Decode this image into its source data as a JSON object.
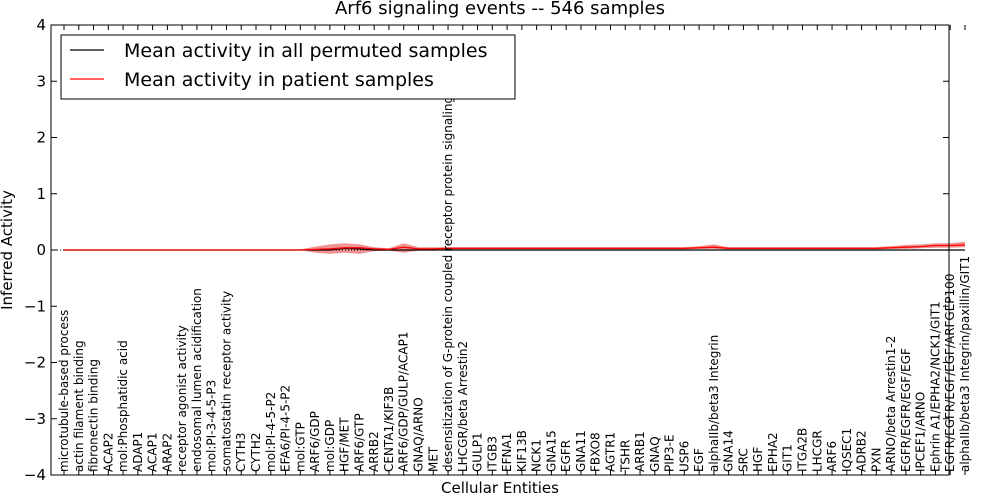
{
  "chart_data": {
    "type": "line",
    "title": "Arf6 signaling events -- 546 samples",
    "xlabel": "Cellular Entities",
    "ylabel": "Inferred Activity",
    "ylim": [
      -4,
      4
    ],
    "yticks": [
      "−4",
      "−3",
      "−2",
      "−1",
      "0",
      "1",
      "2",
      "3",
      "4"
    ],
    "yticks_values": [
      -4,
      -3,
      -2,
      -1,
      0,
      1,
      2,
      3,
      4
    ],
    "grid": false,
    "legend_position": "top-left",
    "categories": [
      "microtubule-based process",
      "actin filament binding",
      "fibronectin binding",
      "ACAP2",
      "mol:Phosphatidic acid",
      "ADAP1",
      "ACAP1",
      "ARAP2",
      "receptor agonist activity",
      "endosomal lumen acidification",
      "mol:PI-3-4-5-P3",
      "somatostatin receptor activity",
      "CYTH3",
      "CYTH2",
      "mol:PI-4-5-P2",
      "EFA6/PI-4-5-P2",
      "mol:GTP",
      "ARF6/GDP",
      "mol:GDP",
      "HGF/MET",
      "ARF6/GTP",
      "ARRB2",
      "CENTA1/KIF3B",
      "ARF6/GDP/GULP/ACAP1",
      "GNAQ/ARNO",
      "MET",
      "desensitization of G-protein coupled receptor protein signaling pathway",
      "LHCGR/beta Arrestin2",
      "GULP1",
      "ITGB3",
      "EFNA1",
      "KIF13B",
      "NCK1",
      "GNA15",
      "EGFR",
      "GNA11",
      "FBXO8",
      "AGTR1",
      "TSHR",
      "ARRB1",
      "GNAQ",
      "PIP3-E",
      "USP6",
      "EGF",
      "alphaIIb/beta3 Integrin",
      "GNA14",
      "SRC",
      "HGF",
      "EPHA2",
      "GIT1",
      "ITGA2B",
      "LHCGR",
      "ARF6",
      "IQSEC1",
      "ADRB2",
      "PXN",
      "ARNO/beta Arrestin1-2",
      "EGFR/EGFR/EGF/EGF",
      "IPCEF1/ARNO",
      "Ephrin A1/EPHA2/NCK1/GIT1",
      "EGFR/EGFR/EGF/EGF/ARFGEP100",
      "alphaIIb/beta3 Integrin/paxillin/GIT1"
    ],
    "series": [
      {
        "name": "Mean activity in all permuted samples",
        "color": "#000000",
        "values": [
          0,
          0,
          0,
          0,
          0,
          0,
          0,
          0,
          0,
          0,
          0,
          0,
          0,
          0,
          0,
          0,
          0,
          0,
          0,
          0.03,
          0.02,
          0,
          0,
          0,
          0,
          0,
          0,
          0,
          0,
          0,
          0,
          0,
          0,
          0,
          0,
          0,
          0,
          0,
          0,
          0,
          0,
          0,
          0,
          0,
          0,
          0,
          0,
          0,
          0,
          0,
          0,
          0,
          0,
          0,
          0,
          0,
          0,
          0,
          0,
          0,
          0,
          0
        ]
      },
      {
        "name": "Mean activity in patient samples",
        "color": "#ff0000",
        "values": [
          0,
          0,
          0,
          0,
          0,
          0,
          0,
          0,
          0,
          0,
          0,
          0,
          0,
          0,
          0,
          0,
          0,
          0.01,
          0.02,
          0.04,
          0.04,
          0.02,
          0.01,
          0.05,
          0.02,
          0.02,
          0.03,
          0.03,
          0.03,
          0.03,
          0.03,
          0.03,
          0.03,
          0.03,
          0.03,
          0.03,
          0.03,
          0.03,
          0.03,
          0.03,
          0.03,
          0.03,
          0.03,
          0.04,
          0.05,
          0.03,
          0.03,
          0.03,
          0.03,
          0.03,
          0.03,
          0.03,
          0.03,
          0.03,
          0.03,
          0.03,
          0.04,
          0.05,
          0.06,
          0.08,
          0.08,
          0.09
        ]
      }
    ],
    "band_upper": [
      0,
      0,
      0,
      0,
      0,
      0,
      0,
      0,
      0,
      0,
      0,
      0,
      0,
      0,
      0,
      0,
      0.01,
      0.06,
      0.1,
      0.12,
      0.1,
      0.05,
      0.03,
      0.12,
      0.05,
      0.05,
      0.05,
      0.05,
      0.05,
      0.05,
      0.05,
      0.05,
      0.05,
      0.05,
      0.05,
      0.05,
      0.05,
      0.05,
      0.05,
      0.05,
      0.05,
      0.05,
      0.05,
      0.07,
      0.1,
      0.05,
      0.05,
      0.05,
      0.05,
      0.05,
      0.05,
      0.05,
      0.05,
      0.05,
      0.05,
      0.05,
      0.07,
      0.09,
      0.1,
      0.12,
      0.12,
      0.15
    ],
    "band_lower": [
      0,
      0,
      0,
      0,
      0,
      0,
      0,
      0,
      0,
      0,
      0,
      0,
      0,
      0,
      0,
      0,
      0,
      -0.05,
      -0.07,
      -0.05,
      -0.07,
      -0.02,
      -0.01,
      -0.05,
      -0.01,
      0.01,
      0.01,
      0.01,
      0.01,
      0.01,
      0.01,
      0.01,
      0.01,
      0.01,
      0.01,
      0.01,
      0.01,
      0.01,
      0.01,
      0.01,
      0.01,
      0.01,
      0.01,
      0.02,
      0.02,
      0.01,
      0.01,
      0.01,
      0.01,
      0.01,
      0.01,
      0.01,
      0.01,
      0.01,
      0.01,
      0.01,
      0.02,
      0.02,
      0.03,
      0.04,
      0.04,
      0.05
    ],
    "band_color": "#f08080"
  }
}
